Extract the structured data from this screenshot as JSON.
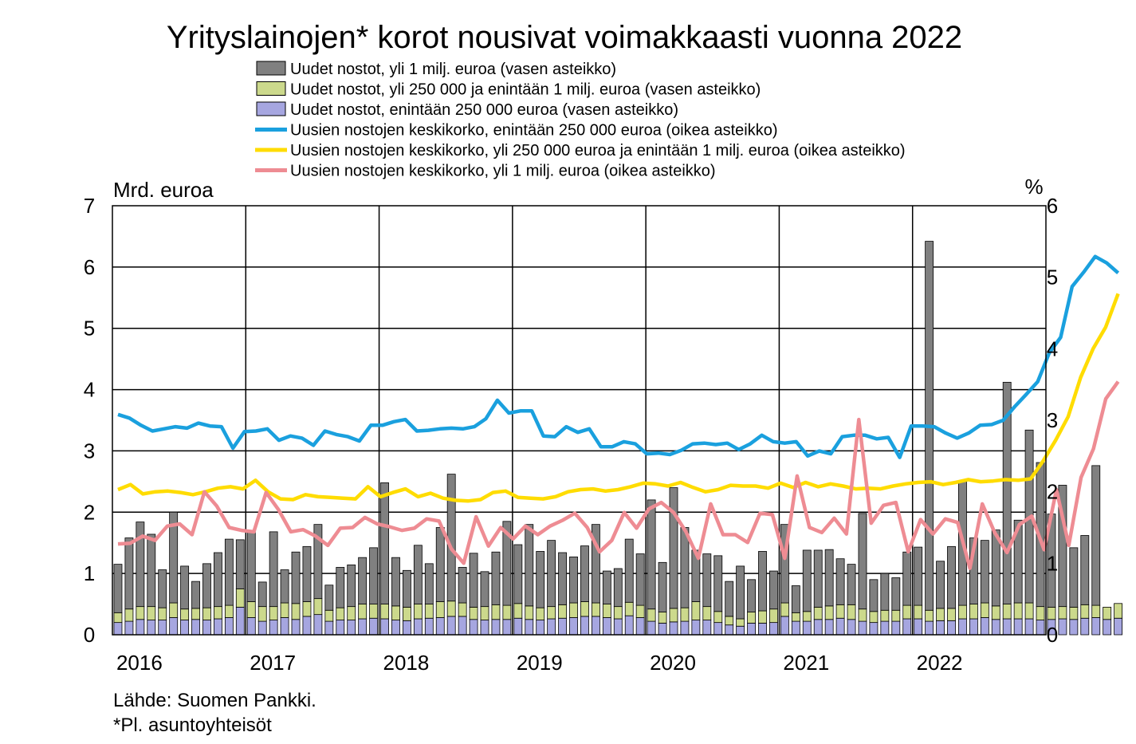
{
  "chart_data": {
    "type": "bar+line",
    "title": "Yrityslainojen* korot nousivat voimakkaasti vuonna 2022",
    "left_axis_label": "Mrd. euroa",
    "right_axis_label": "%",
    "left_ylim": [
      0,
      7
    ],
    "right_ylim": [
      0,
      6
    ],
    "left_ticks": [
      "0",
      "1",
      "2",
      "3",
      "4",
      "5",
      "6",
      "7"
    ],
    "right_ticks": [
      "0",
      "1",
      "2",
      "3",
      "4",
      "5",
      "6"
    ],
    "year_labels": [
      "2016",
      "2017",
      "2018",
      "2019",
      "2020",
      "2021",
      "2022"
    ],
    "grid": true,
    "legend_position": "top",
    "bar_series": [
      {
        "name": "Uudet nostot, enintään 250 000 euroa (vasen asteikko)",
        "color": "#a6a6e0",
        "values": [
          0.2,
          0.22,
          0.25,
          0.24,
          0.24,
          0.28,
          0.24,
          0.25,
          0.24,
          0.26,
          0.28,
          0.45,
          0.28,
          0.22,
          0.24,
          0.28,
          0.25,
          0.3,
          0.33,
          0.22,
          0.24,
          0.24,
          0.26,
          0.27,
          0.26,
          0.24,
          0.23,
          0.26,
          0.27,
          0.28,
          0.3,
          0.3,
          0.25,
          0.24,
          0.25,
          0.25,
          0.27,
          0.25,
          0.24,
          0.26,
          0.27,
          0.28,
          0.3,
          0.3,
          0.28,
          0.26,
          0.31,
          0.28,
          0.22,
          0.19,
          0.21,
          0.22,
          0.24,
          0.24,
          0.2,
          0.16,
          0.14,
          0.19,
          0.19,
          0.2,
          0.3,
          0.22,
          0.22,
          0.25,
          0.25,
          0.27,
          0.25,
          0.22,
          0.2,
          0.22,
          0.22,
          0.26,
          0.26,
          0.22,
          0.23,
          0.23,
          0.26,
          0.26,
          0.28,
          0.25,
          0.26,
          0.26,
          0.26,
          0.24,
          0.25,
          0.26,
          0.25,
          0.27,
          0.28,
          0.25,
          0.27
        ]
      },
      {
        "name": "Uudet nostot, yli 250 000  ja enintään 1 milj. euroa (vasen asteikko)",
        "color": "#ccd98c",
        "values": [
          0.16,
          0.2,
          0.21,
          0.22,
          0.2,
          0.24,
          0.18,
          0.18,
          0.2,
          0.2,
          0.2,
          0.3,
          0.26,
          0.24,
          0.22,
          0.24,
          0.26,
          0.24,
          0.26,
          0.18,
          0.2,
          0.22,
          0.24,
          0.23,
          0.24,
          0.23,
          0.22,
          0.24,
          0.23,
          0.26,
          0.25,
          0.22,
          0.2,
          0.22,
          0.24,
          0.23,
          0.24,
          0.22,
          0.2,
          0.2,
          0.22,
          0.24,
          0.24,
          0.22,
          0.22,
          0.2,
          0.22,
          0.2,
          0.2,
          0.18,
          0.22,
          0.22,
          0.3,
          0.22,
          0.18,
          0.14,
          0.12,
          0.18,
          0.2,
          0.22,
          0.22,
          0.14,
          0.16,
          0.2,
          0.22,
          0.22,
          0.24,
          0.2,
          0.18,
          0.18,
          0.18,
          0.22,
          0.22,
          0.18,
          0.2,
          0.2,
          0.22,
          0.24,
          0.24,
          0.22,
          0.24,
          0.26,
          0.26,
          0.22,
          0.2,
          0.2,
          0.2,
          0.22,
          0.2,
          0.2,
          0.24
        ]
      },
      {
        "name": "Uudet nostot, yli 1 milj. euroa (vasen asteikko)",
        "color": "#808080",
        "values": [
          0.79,
          1.16,
          1.38,
          1.18,
          0.62,
          1.48,
          0.7,
          0.44,
          0.72,
          0.88,
          1.08,
          0.8,
          1.16,
          0.4,
          1.22,
          0.54,
          0.84,
          0.9,
          1.21,
          0.41,
          0.66,
          0.68,
          0.76,
          0.92,
          1.98,
          0.79,
          0.6,
          0.96,
          0.66,
          1.21,
          2.07,
          0.58,
          0.88,
          0.57,
          0.86,
          1.37,
          0.96,
          1.33,
          0.92,
          1.08,
          0.85,
          0.75,
          0.91,
          1.28,
          0.54,
          0.62,
          1.03,
          0.84,
          1.78,
          0.81,
          1.97,
          1.31,
          0.84,
          0.86,
          0.91,
          0.57,
          0.86,
          0.53,
          0.97,
          0.62,
          1.28,
          0.44,
          1.0,
          0.93,
          0.92,
          0.75,
          0.66,
          1.56,
          0.52,
          0.6,
          0.53,
          0.87,
          0.95,
          6.02,
          0.77,
          1.01,
          2.02,
          1.08,
          1.02,
          1.24,
          3.62,
          1.35,
          2.82,
          2.35,
          1.52,
          1.98,
          0.97,
          1.13,
          2.28
        ]
      }
    ],
    "line_series": [
      {
        "name": "Uusien nostojen keskikorko, enintään 250 000 euroa (oikea asteikko)",
        "color": "#1aa0de",
        "values": [
          3.08,
          3.03,
          2.93,
          2.85,
          2.88,
          2.91,
          2.89,
          2.96,
          2.92,
          2.91,
          2.61,
          2.84,
          2.85,
          2.88,
          2.72,
          2.78,
          2.75,
          2.65,
          2.85,
          2.8,
          2.77,
          2.71,
          2.93,
          2.93,
          2.98,
          3.01,
          2.85,
          2.86,
          2.88,
          2.89,
          2.88,
          2.91,
          3.02,
          3.28,
          3.1,
          3.13,
          3.13,
          2.78,
          2.77,
          2.91,
          2.83,
          2.88,
          2.63,
          2.63,
          2.7,
          2.67,
          2.53,
          2.54,
          2.52,
          2.58,
          2.67,
          2.68,
          2.66,
          2.68,
          2.59,
          2.67,
          2.79,
          2.7,
          2.68,
          2.7,
          2.5,
          2.57,
          2.53,
          2.77,
          2.79,
          2.79,
          2.74,
          2.76,
          2.48,
          2.92,
          2.92,
          2.91,
          2.82,
          2.75,
          2.82,
          2.93,
          2.94,
          3.0,
          3.19,
          3.36,
          3.54,
          3.94,
          4.16,
          4.87,
          5.07,
          5.29,
          5.2,
          5.06
        ],
        "start_index": 0
      },
      {
        "name": "Uusien nostojen keskikorko, yli 250 000 euroa ja enintään 1 milj. euroa (oikea asteikko)",
        "color": "#ffdc00",
        "values": [
          2.03,
          2.1,
          1.97,
          2.0,
          2.01,
          1.99,
          1.96,
          2.0,
          2.05,
          2.07,
          2.04,
          2.16,
          2.0,
          1.9,
          1.89,
          1.96,
          1.93,
          1.92,
          1.91,
          1.9,
          2.07,
          1.93,
          1.99,
          2.04,
          1.93,
          1.98,
          1.91,
          1.88,
          1.87,
          1.89,
          1.99,
          2.01,
          1.92,
          1.91,
          1.9,
          1.93,
          2.0,
          2.03,
          2.04,
          2.01,
          2.03,
          2.07,
          2.12,
          2.11,
          2.08,
          2.13,
          2.06,
          2.0,
          2.03,
          2.09,
          2.08,
          2.08,
          2.05,
          2.12,
          2.06,
          2.13,
          2.07,
          2.11,
          2.08,
          2.04,
          2.05,
          2.04,
          2.08,
          2.11,
          2.13,
          2.14,
          2.1,
          2.13,
          2.17,
          2.14,
          2.15,
          2.17,
          2.16,
          2.18,
          2.43,
          2.72,
          3.05,
          3.6,
          4.0,
          4.3,
          4.77
        ],
        "start_index": 0
      },
      {
        "name": "Uusien nostojen keskikorko, yli 1 milj. euroa (oikea asteikko)",
        "color": "#ee8c93",
        "values": [
          1.27,
          1.28,
          1.38,
          1.32,
          1.52,
          1.55,
          1.4,
          2.0,
          1.8,
          1.5,
          1.46,
          1.44,
          1.99,
          1.75,
          1.44,
          1.47,
          1.38,
          1.25,
          1.49,
          1.5,
          1.64,
          1.55,
          1.51,
          1.46,
          1.49,
          1.62,
          1.59,
          1.2,
          1.0,
          1.65,
          1.24,
          1.5,
          1.34,
          1.52,
          1.4,
          1.52,
          1.6,
          1.7,
          1.5,
          1.16,
          1.32,
          1.71,
          1.49,
          1.76,
          1.85,
          1.71,
          1.44,
          1.07,
          1.83,
          1.4,
          1.4,
          1.29,
          1.7,
          1.68,
          1.07,
          2.22,
          1.5,
          1.43,
          1.63,
          1.41,
          3.01,
          1.56,
          1.81,
          1.85,
          1.16,
          1.61,
          1.41,
          1.62,
          1.57,
          0.93,
          1.83,
          1.43,
          1.15,
          1.54,
          1.66,
          1.19,
          2.03,
          1.25,
          2.2,
          2.6,
          3.3,
          3.54
        ],
        "start_index": 0
      }
    ],
    "footnotes": [
      "Lähde: Suomen Pankki.",
      "*Pl. asuntoyhteisöt"
    ]
  }
}
